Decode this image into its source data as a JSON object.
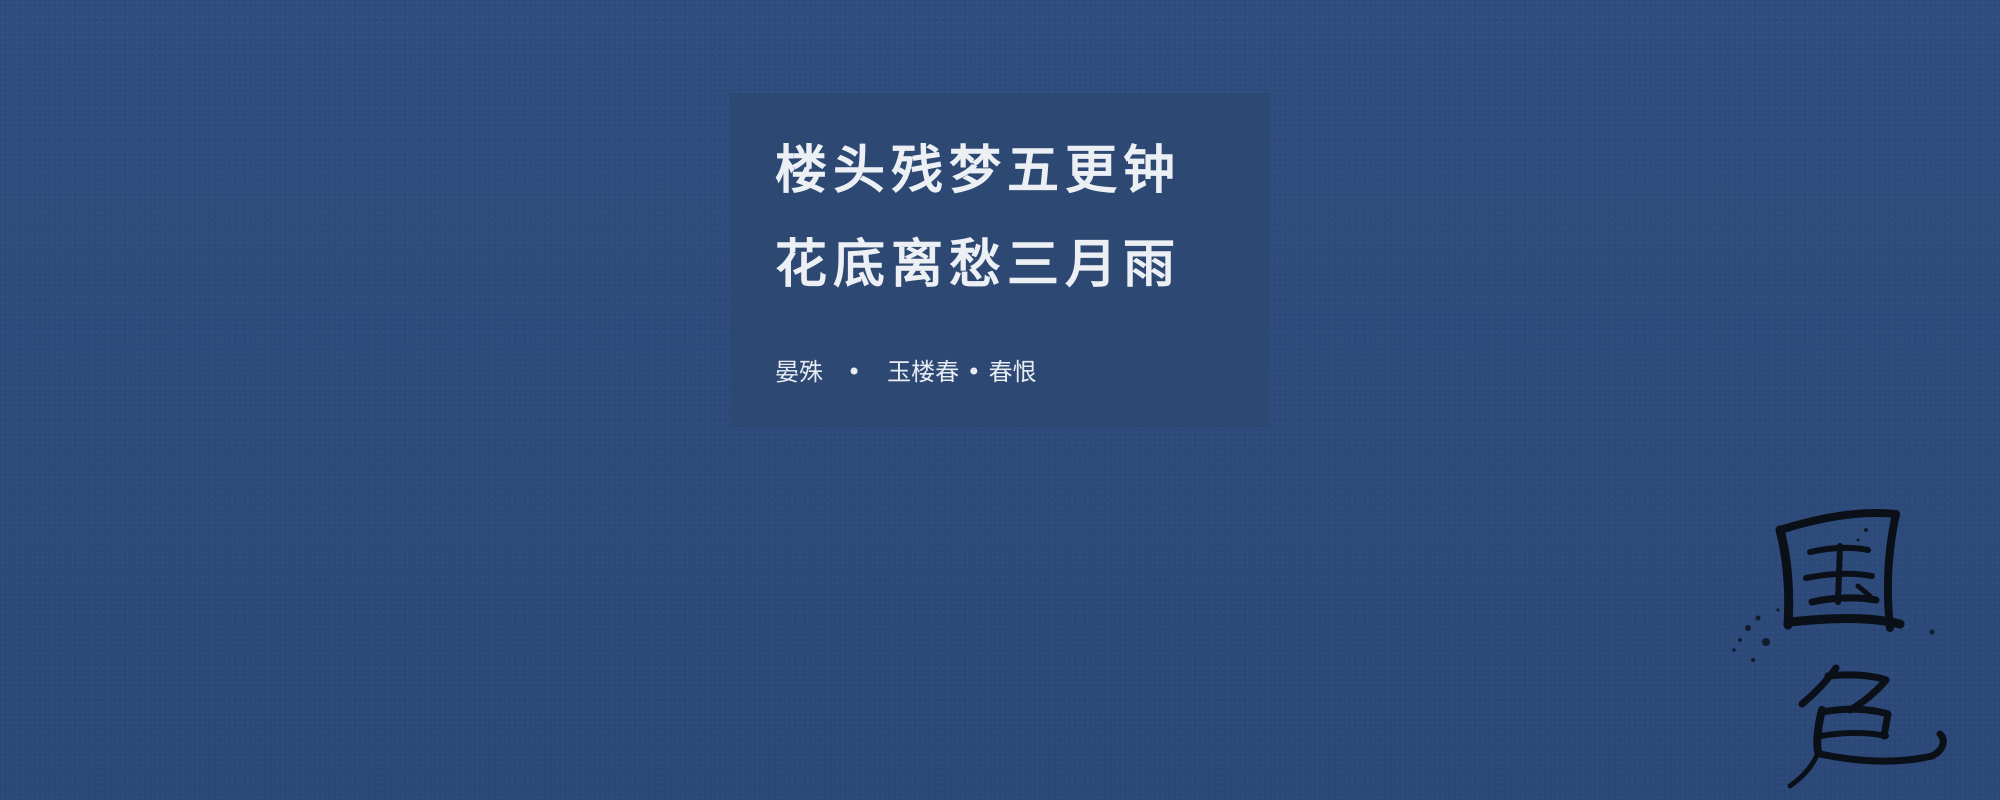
{
  "poem": {
    "line1": "楼头残梦五更钟",
    "line2": "花底离愁三月雨",
    "author": "晏殊",
    "separator": "•",
    "title": "玉楼春 • 春恨"
  },
  "seal": {
    "text": "国色",
    "icon": "calligraphy-seal-icon"
  },
  "colors": {
    "background": "#2c4a7b",
    "panel": "#2d4870",
    "text": "#ecf0f5"
  }
}
